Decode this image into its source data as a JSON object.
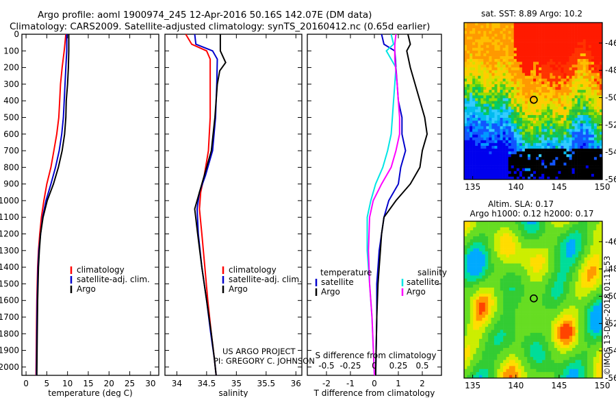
{
  "header": {
    "line1": "Argo profile: aoml 1900974_245 12-Apr-2016 50.16S 142.07E (DM data)",
    "line2": "Climatology: CARS2009. Satellite-adjusted climatology: synTS_20160412.nc (0.65d earlier)"
  },
  "colors": {
    "climatology": "#ff0000",
    "satellite": "#0000cc",
    "argo": "#000000",
    "sat_salinity": "#00e5e5",
    "argo_salinity": "#ff00ff"
  },
  "credit": {
    "line1": "US ARGO PROJECT",
    "line2": "PI: GREGORY C. JOHNSON"
  },
  "watermark": "©IMOS 13-Dec-2018 01:11:53",
  "chart_data": [
    {
      "id": "temperature",
      "type": "line",
      "xlabel": "temperature (deg C)",
      "xlim": [
        -1,
        32
      ],
      "xticks": [
        0,
        5,
        10,
        15,
        20,
        25,
        30
      ],
      "ylim": [
        2050,
        0
      ],
      "yticks": [
        0,
        100,
        200,
        300,
        400,
        500,
        600,
        700,
        800,
        900,
        1000,
        1100,
        1200,
        1300,
        1400,
        1500,
        1600,
        1700,
        1800,
        1900,
        2000
      ],
      "legend": [
        "climatology",
        "satellite-adj. clim.",
        "Argo"
      ],
      "series": [
        {
          "name": "climatology",
          "color": "#ff0000",
          "points": [
            [
              9.6,
              0
            ],
            [
              9.2,
              100
            ],
            [
              8.7,
              200
            ],
            [
              8.3,
              300
            ],
            [
              8.1,
              400
            ],
            [
              7.9,
              500
            ],
            [
              7.4,
              600
            ],
            [
              6.7,
              700
            ],
            [
              6.0,
              800
            ],
            [
              5.0,
              900
            ],
            [
              4.3,
              1000
            ],
            [
              3.7,
              1100
            ],
            [
              3.3,
              1200
            ],
            [
              3.0,
              1300
            ],
            [
              2.8,
              1400
            ],
            [
              2.7,
              1500
            ],
            [
              2.6,
              1600
            ],
            [
              2.5,
              1800
            ],
            [
              2.4,
              2050
            ]
          ]
        },
        {
          "name": "satellite-adj. clim.",
          "color": "#0000cc",
          "points": [
            [
              9.8,
              0
            ],
            [
              9.8,
              100
            ],
            [
              9.6,
              200
            ],
            [
              9.4,
              300
            ],
            [
              9.2,
              400
            ],
            [
              9.0,
              500
            ],
            [
              8.6,
              600
            ],
            [
              8.0,
              700
            ],
            [
              7.1,
              800
            ],
            [
              6.0,
              900
            ],
            [
              4.8,
              1000
            ],
            [
              4.0,
              1100
            ],
            [
              3.5,
              1200
            ],
            [
              3.1,
              1300
            ],
            [
              2.9,
              1400
            ],
            [
              2.8,
              1500
            ],
            [
              2.7,
              1600
            ],
            [
              2.6,
              1800
            ],
            [
              2.5,
              2050
            ]
          ]
        },
        {
          "name": "Argo",
          "color": "#000000",
          "points": [
            [
              10.3,
              0
            ],
            [
              10.3,
              100
            ],
            [
              10.2,
              200
            ],
            [
              10.0,
              300
            ],
            [
              9.7,
              400
            ],
            [
              9.6,
              500
            ],
            [
              9.3,
              600
            ],
            [
              8.7,
              700
            ],
            [
              7.8,
              800
            ],
            [
              6.6,
              900
            ],
            [
              5.1,
              1000
            ],
            [
              4.1,
              1100
            ],
            [
              3.5,
              1200
            ],
            [
              3.2,
              1300
            ],
            [
              3.0,
              1400
            ],
            [
              2.9,
              1500
            ],
            [
              2.8,
              1600
            ],
            [
              2.7,
              1800
            ],
            [
              2.6,
              2050
            ]
          ]
        }
      ]
    },
    {
      "id": "salinity",
      "type": "line",
      "xlabel": "salinity",
      "xlim": [
        33.8,
        36.1
      ],
      "xticks": [
        34,
        34.5,
        35,
        35.5,
        36
      ],
      "xticklabels": [
        "34",
        "34.5",
        "35",
        "35.5",
        "36"
      ],
      "ylim": [
        2050,
        0
      ],
      "legend": [
        "climatology",
        "satellite-adj. clim.",
        "Argo"
      ],
      "series": [
        {
          "name": "climatology",
          "color": "#ff0000",
          "points": [
            [
              34.15,
              0
            ],
            [
              34.25,
              60
            ],
            [
              34.5,
              100
            ],
            [
              34.56,
              150
            ],
            [
              34.56,
              300
            ],
            [
              34.56,
              500
            ],
            [
              34.53,
              700
            ],
            [
              34.46,
              850
            ],
            [
              34.4,
              950
            ],
            [
              34.38,
              1050
            ],
            [
              34.42,
              1200
            ],
            [
              34.47,
              1400
            ],
            [
              34.52,
              1600
            ],
            [
              34.58,
              1800
            ],
            [
              34.63,
              1950
            ],
            [
              34.66,
              2050
            ]
          ]
        },
        {
          "name": "satellite-adj. clim.",
          "color": "#0000cc",
          "points": [
            [
              34.3,
              0
            ],
            [
              34.32,
              60
            ],
            [
              34.6,
              100
            ],
            [
              34.68,
              150
            ],
            [
              34.67,
              300
            ],
            [
              34.65,
              500
            ],
            [
              34.6,
              700
            ],
            [
              34.48,
              850
            ],
            [
              34.38,
              950
            ],
            [
              34.34,
              1050
            ],
            [
              34.36,
              1200
            ],
            [
              34.42,
              1400
            ],
            [
              34.5,
              1600
            ],
            [
              34.57,
              1800
            ],
            [
              34.63,
              1950
            ],
            [
              34.66,
              2050
            ]
          ]
        },
        {
          "name": "Argo",
          "color": "#000000",
          "points": [
            [
              34.73,
              0
            ],
            [
              34.73,
              100
            ],
            [
              34.82,
              170
            ],
            [
              34.72,
              220
            ],
            [
              34.68,
              300
            ],
            [
              34.64,
              500
            ],
            [
              34.58,
              700
            ],
            [
              34.46,
              850
            ],
            [
              34.38,
              950
            ],
            [
              34.3,
              1050
            ],
            [
              34.35,
              1200
            ],
            [
              34.42,
              1400
            ],
            [
              34.5,
              1600
            ],
            [
              34.58,
              1800
            ],
            [
              34.63,
              1950
            ],
            [
              34.66,
              2050
            ]
          ]
        }
      ]
    },
    {
      "id": "difference",
      "type": "line",
      "xlabel": "T difference from climatology",
      "xlabel_top": "S difference from climatology",
      "xlim": [
        -2.8,
        2.8
      ],
      "xticks": [
        -2,
        -1,
        0,
        1,
        2
      ],
      "xticks_top": [
        -0.5,
        -0.25,
        0,
        0.25,
        0.5
      ],
      "xticklabels_top": [
        "-0.5",
        "-0.25",
        "0",
        "0.25",
        "0.5"
      ],
      "ylim": [
        2050,
        0
      ],
      "legend_temperature": {
        "title": "temperature",
        "entries": [
          "satellite",
          "Argo"
        ]
      },
      "legend_salinity": {
        "title": "salinity",
        "entries": [
          "satellite",
          "Argo"
        ]
      },
      "series": [
        {
          "name": "satellite",
          "group": "temperature",
          "color": "#0000cc",
          "points": [
            [
              0.3,
              0
            ],
            [
              0.4,
              60
            ],
            [
              0.85,
              100
            ],
            [
              0.9,
              200
            ],
            [
              0.95,
              300
            ],
            [
              1.0,
              400
            ],
            [
              1.15,
              500
            ],
            [
              1.15,
              600
            ],
            [
              1.3,
              700
            ],
            [
              1.1,
              800
            ],
            [
              1.0,
              900
            ],
            [
              0.6,
              1000
            ],
            [
              0.4,
              1100
            ],
            [
              0.3,
              1200
            ],
            [
              0.2,
              1300
            ],
            [
              0.15,
              1400
            ],
            [
              0.1,
              1500
            ],
            [
              0.1,
              1700
            ],
            [
              0.05,
              2050
            ]
          ]
        },
        {
          "name": "Argo",
          "group": "temperature",
          "color": "#000000",
          "points": [
            [
              1.4,
              0
            ],
            [
              1.5,
              60
            ],
            [
              1.35,
              100
            ],
            [
              1.5,
              200
            ],
            [
              1.7,
              300
            ],
            [
              1.9,
              400
            ],
            [
              2.1,
              500
            ],
            [
              2.2,
              600
            ],
            [
              2.0,
              700
            ],
            [
              1.9,
              800
            ],
            [
              1.5,
              900
            ],
            [
              0.9,
              1000
            ],
            [
              0.4,
              1100
            ],
            [
              0.3,
              1200
            ],
            [
              0.25,
              1300
            ],
            [
              0.2,
              1400
            ],
            [
              0.15,
              1500
            ],
            [
              0.1,
              1700
            ],
            [
              0.05,
              2050
            ]
          ]
        },
        {
          "name": "satellite",
          "group": "salinity",
          "color": "#00e5e5",
          "points": [
            [
              0.7,
              0
            ],
            [
              0.8,
              60
            ],
            [
              0.5,
              100
            ],
            [
              0.9,
              200
            ],
            [
              0.85,
              300
            ],
            [
              0.8,
              400
            ],
            [
              0.75,
              500
            ],
            [
              0.7,
              600
            ],
            [
              0.55,
              700
            ],
            [
              0.35,
              800
            ],
            [
              0.05,
              900
            ],
            [
              -0.15,
              1000
            ],
            [
              -0.3,
              1100
            ],
            [
              -0.3,
              1300
            ],
            [
              -0.2,
              1500
            ],
            [
              -0.1,
              1700
            ],
            [
              0.0,
              2050
            ]
          ]
        },
        {
          "name": "Argo",
          "group": "salinity",
          "color": "#ff00ff",
          "points": [
            [
              0.9,
              0
            ],
            [
              0.85,
              60
            ],
            [
              0.85,
              100
            ],
            [
              0.85,
              150
            ],
            [
              0.95,
              300
            ],
            [
              1.0,
              400
            ],
            [
              1.05,
              500
            ],
            [
              1.05,
              600
            ],
            [
              0.9,
              700
            ],
            [
              0.7,
              800
            ],
            [
              0.3,
              900
            ],
            [
              -0.05,
              1000
            ],
            [
              -0.2,
              1100
            ],
            [
              -0.25,
              1300
            ],
            [
              -0.2,
              1500
            ],
            [
              -0.1,
              1700
            ],
            [
              0.0,
              2050
            ]
          ]
        }
      ]
    },
    {
      "id": "sst-map",
      "type": "heatmap",
      "title": "sat. SST: 8.89 Argo: 10.2",
      "xlim": [
        134,
        150
      ],
      "ylim": [
        -56,
        -44.5
      ],
      "xticks": [
        135,
        140,
        145,
        150
      ],
      "yticks": [
        -46,
        -48,
        -50,
        -52,
        -54,
        -56
      ],
      "marker": [
        142.07,
        -50.16
      ]
    },
    {
      "id": "sla-map",
      "type": "heatmap",
      "title": "Altim. SLA: 0.17",
      "subtitle": "Argo h1000: 0.12 h2000: 0.17",
      "xlim": [
        134,
        150
      ],
      "ylim": [
        -56,
        -44.5
      ],
      "xticks": [
        135,
        140,
        145,
        150
      ],
      "yticks": [
        -46,
        -48,
        -50,
        -52,
        -54,
        -56
      ],
      "marker": [
        142.07,
        -50.16
      ]
    }
  ]
}
